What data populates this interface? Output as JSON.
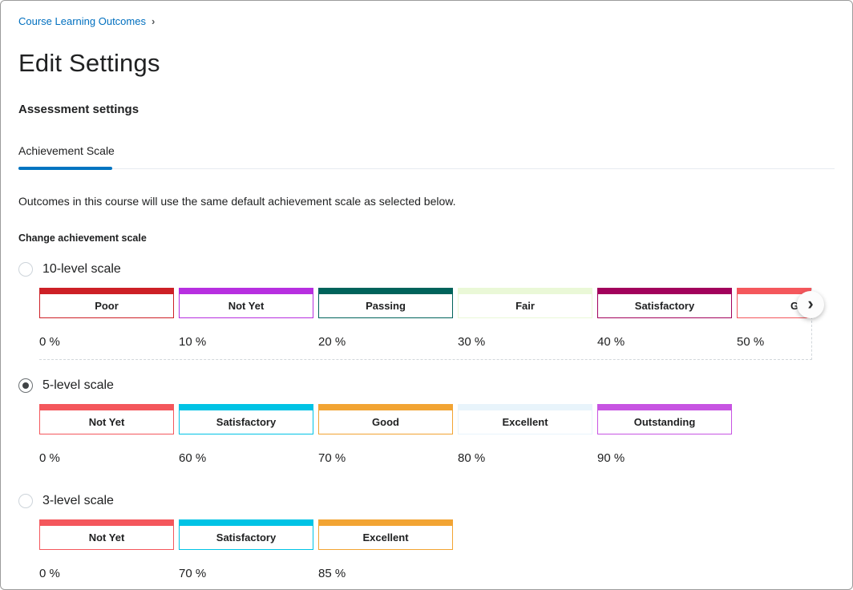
{
  "breadcrumb": {
    "label": "Course Learning Outcomes",
    "separator": "›"
  },
  "page": {
    "title": "Edit Settings",
    "section_heading": "Assessment settings"
  },
  "tabs": [
    {
      "label": "Achievement Scale",
      "active": true
    }
  ],
  "description": "Outcomes in this course will use the same default achievement scale as selected below.",
  "change_scale_label": "Change achievement scale",
  "icons": {
    "chevron_right": "›",
    "breadcrumb_chevron": "›"
  },
  "colors": {
    "accent_blue": "#0074c1",
    "breadcrumb_link": "#006fbf"
  },
  "scales": [
    {
      "id": "10-level-scale",
      "label": "10-level scale",
      "selected": false,
      "overflow": true,
      "levels": [
        {
          "name": "Poor",
          "percent": "0 %",
          "color": "#cd2026"
        },
        {
          "name": "Not Yet",
          "percent": "10 %",
          "color": "#b72fe0"
        },
        {
          "name": "Passing",
          "percent": "20 %",
          "color": "#00635b"
        },
        {
          "name": "Fair",
          "percent": "30 %",
          "color": "#eaf8d7"
        },
        {
          "name": "Satisfactory",
          "percent": "40 %",
          "color": "#a2025c"
        },
        {
          "name": "Good",
          "percent": "50 %",
          "color": "#f4575c"
        }
      ]
    },
    {
      "id": "5-level-scale",
      "label": "5-level scale",
      "selected": true,
      "overflow": false,
      "levels": [
        {
          "name": "Not Yet",
          "percent": "0 %",
          "color": "#f4575c"
        },
        {
          "name": "Satisfactory",
          "percent": "60 %",
          "color": "#00c3e5"
        },
        {
          "name": "Good",
          "percent": "70 %",
          "color": "#f2a433"
        },
        {
          "name": "Excellent",
          "percent": "80 %",
          "color": "#e8f4fb"
        },
        {
          "name": "Outstanding",
          "percent": "90 %",
          "color": "#c754e2"
        }
      ]
    },
    {
      "id": "3-level-scale",
      "label": "3-level scale",
      "selected": false,
      "overflow": false,
      "levels": [
        {
          "name": "Not Yet",
          "percent": "0 %",
          "color": "#f4575c"
        },
        {
          "name": "Satisfactory",
          "percent": "70 %",
          "color": "#00c3e5"
        },
        {
          "name": "Excellent",
          "percent": "85 %",
          "color": "#f2a433"
        }
      ]
    }
  ]
}
